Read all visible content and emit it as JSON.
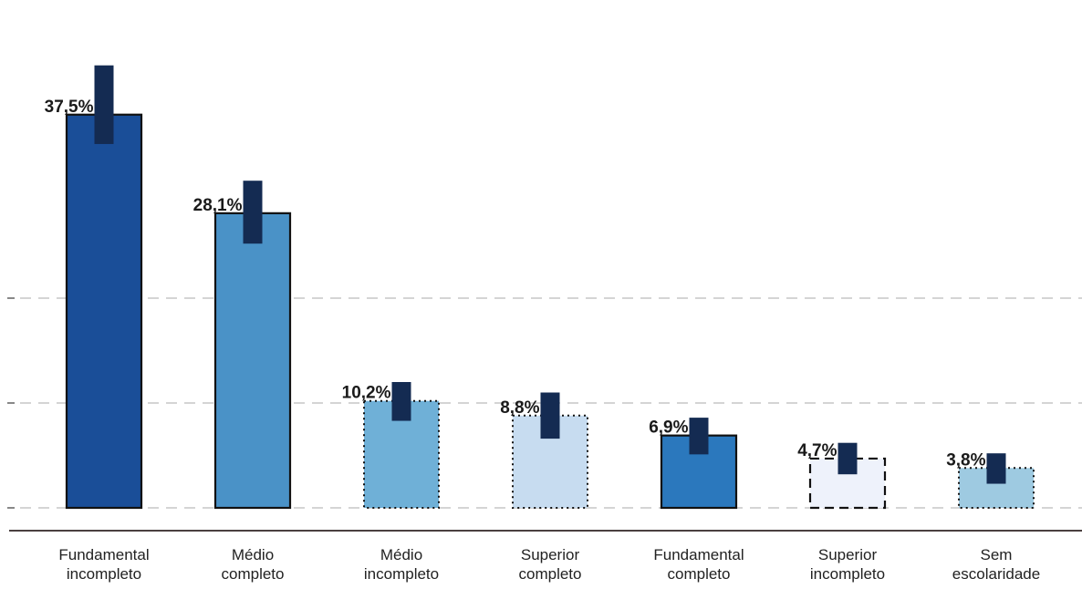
{
  "chart_data": {
    "type": "bar",
    "title": "",
    "xlabel": "",
    "ylabel": "",
    "ylim": [
      0,
      40
    ],
    "grid": true,
    "categories": [
      [
        "Fundamental",
        "incompleto"
      ],
      [
        "Médio",
        "completo"
      ],
      [
        "Médio",
        "incompleto"
      ],
      [
        "Superior",
        "completo"
      ],
      [
        "Fundamental",
        "completo"
      ],
      [
        "Superior",
        "incompleto"
      ],
      [
        "Sem",
        "escolaridade"
      ]
    ],
    "values": [
      37.5,
      28.1,
      10.2,
      8.8,
      6.9,
      4.7,
      3.8
    ],
    "value_labels": [
      "37,5%",
      "28,1%",
      "10,2%",
      "8,8%",
      "6,9%",
      "4,7%",
      "3,8%"
    ],
    "error_ranges": [
      [
        34.7,
        42.2
      ],
      [
        25.2,
        31.2
      ],
      [
        8.3,
        12.0
      ],
      [
        6.6,
        11.0
      ],
      [
        5.1,
        8.6
      ],
      [
        3.2,
        6.2
      ],
      [
        2.3,
        5.2
      ]
    ],
    "bar_colors": [
      "#1a4e98",
      "#4a92c7",
      "#6fb0d7",
      "#c7dcf0",
      "#2b78bd",
      "#eef2fb",
      "#9ecae1"
    ],
    "bar_borders": [
      "solid",
      "solid",
      "dotted",
      "dotted",
      "solid",
      "dashed",
      "dotted"
    ],
    "error_color": "#142b52"
  }
}
